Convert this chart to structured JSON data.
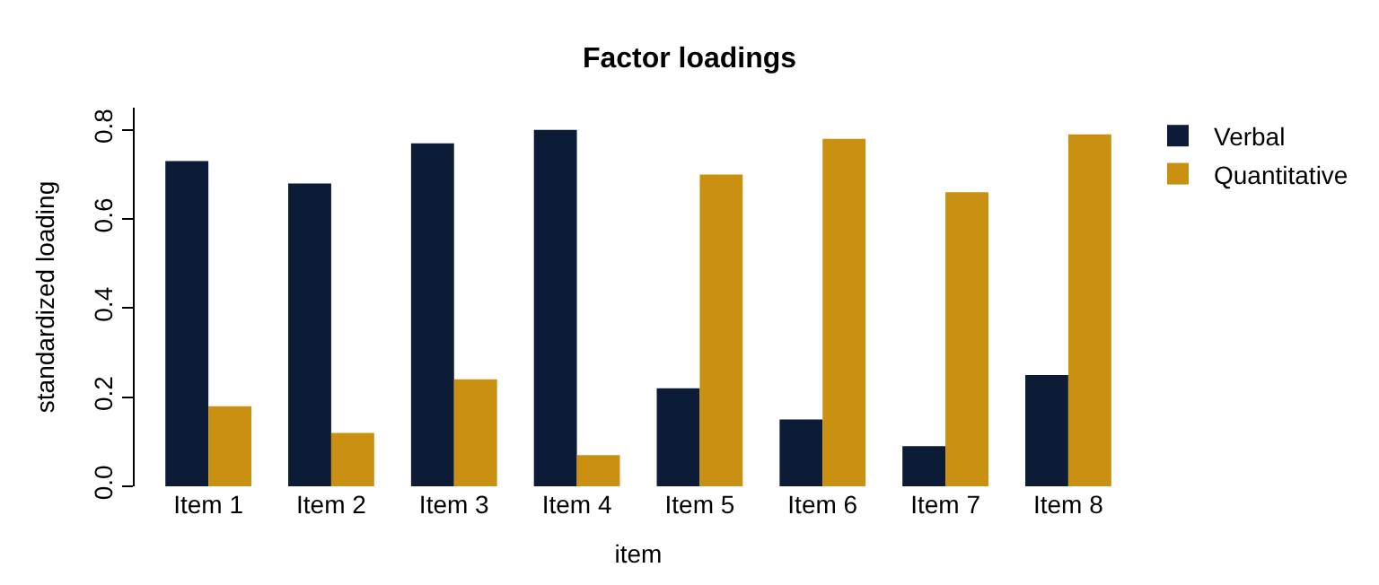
{
  "chart_data": {
    "type": "bar",
    "title": "Factor loadings",
    "xlabel": "item",
    "ylabel": "standardized loading",
    "categories": [
      "Item 1",
      "Item 2",
      "Item 3",
      "Item 4",
      "Item 5",
      "Item 6",
      "Item 7",
      "Item 8"
    ],
    "series": [
      {
        "name": "Verbal",
        "color": "#0c1c36",
        "values": [
          0.73,
          0.68,
          0.77,
          0.8,
          0.22,
          0.15,
          0.09,
          0.25
        ]
      },
      {
        "name": "Quantitative",
        "color": "#c99012",
        "values": [
          0.18,
          0.12,
          0.24,
          0.07,
          0.7,
          0.78,
          0.66,
          0.79
        ]
      }
    ],
    "ylim": [
      0,
      0.85
    ],
    "yticks": [
      {
        "value": 0,
        "label": "0.0"
      },
      0.2,
      0.4,
      0.6,
      0.8
    ],
    "legend": "right"
  }
}
